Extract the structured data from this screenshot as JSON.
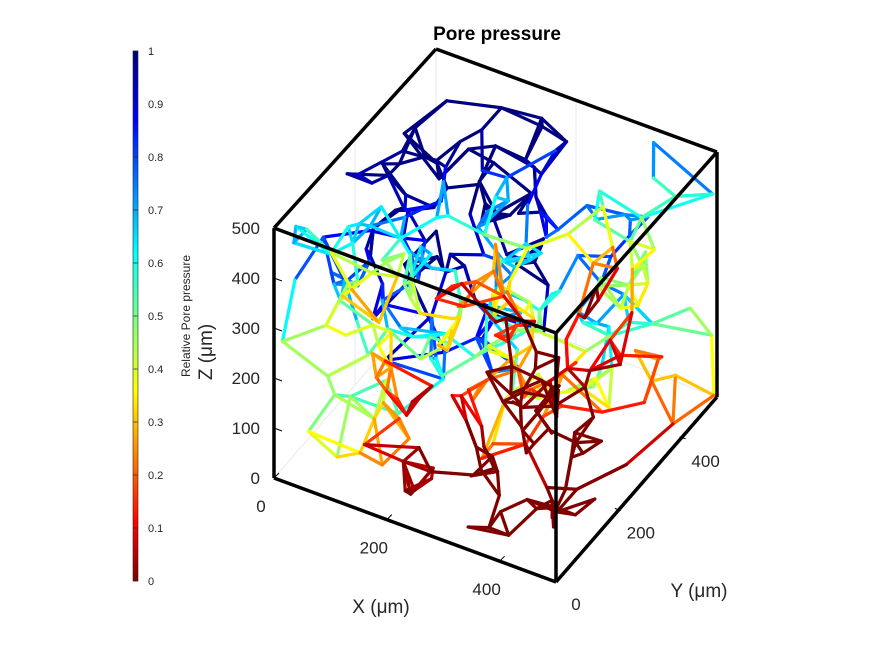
{
  "chart_data": {
    "type": "3d-network",
    "title": "Pore pressure",
    "xlabel": "X (μm)",
    "ylabel": "Y (μm)",
    "zlabel": "Z (μm)",
    "xlim": [
      0,
      500
    ],
    "ylim": [
      0,
      500
    ],
    "zlim": [
      0,
      500
    ],
    "x_ticks": [
      "0",
      "200",
      "400"
    ],
    "y_ticks": [
      "0",
      "200",
      "400"
    ],
    "z_ticks": [
      "0",
      "100",
      "200",
      "300",
      "400",
      "500"
    ],
    "colorbar": {
      "label": "Relative Pore pressure",
      "ticks": [
        "0",
        "0.1",
        "0.2",
        "0.3",
        "0.4",
        "0.5",
        "0.6",
        "0.7",
        "0.8",
        "0.9",
        "1"
      ],
      "range": [
        0,
        1
      ],
      "colormap": "jet-reversed",
      "placement": "left"
    },
    "pressure_trend": "high (≈1) at large Y, decreasing toward 0 at large X",
    "grid": false
  }
}
